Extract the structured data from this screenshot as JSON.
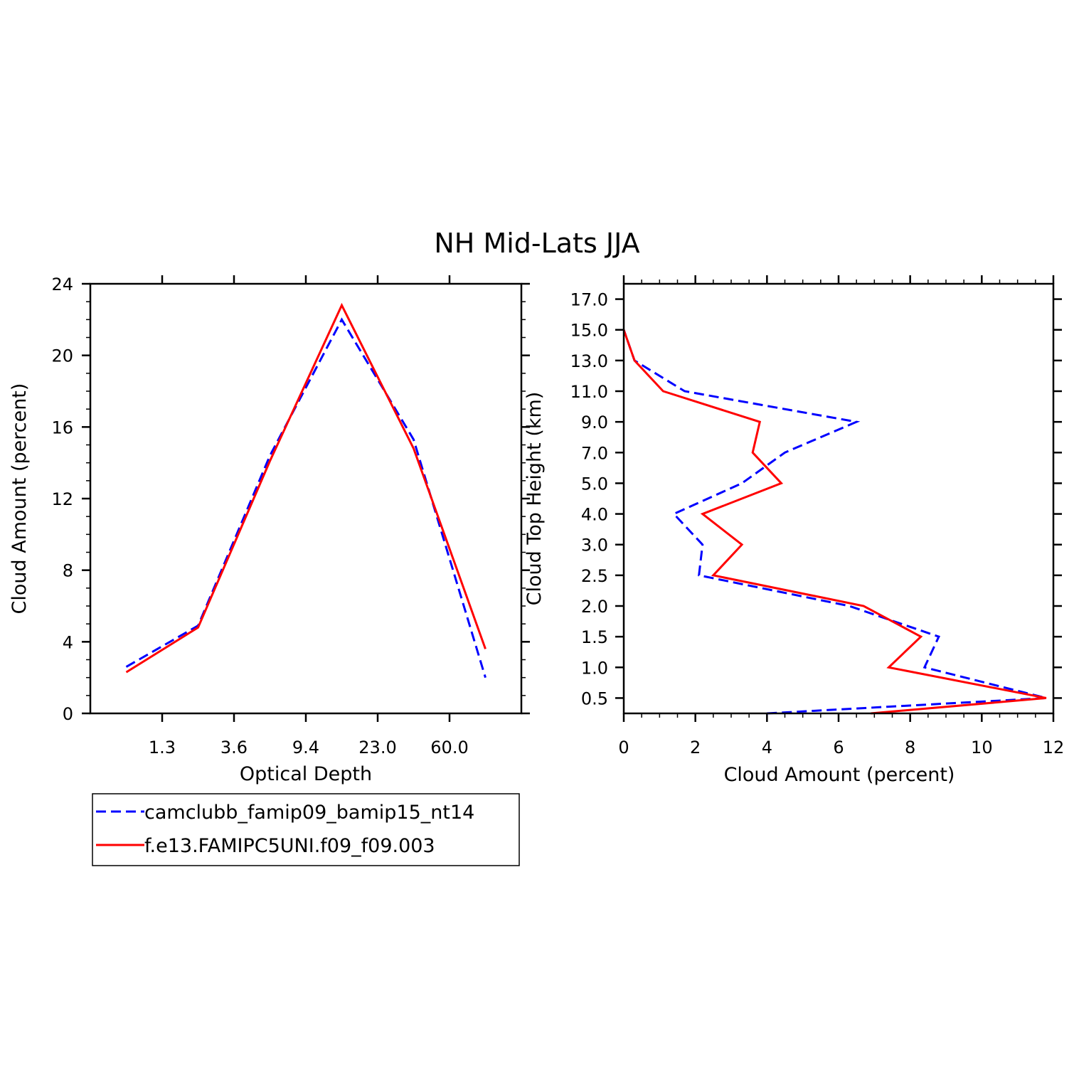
{
  "title": "NH Mid-Lats JJA",
  "series_styles": [
    {
      "name": "camclubb_famip09_bamip15_nt14",
      "color": "#0000ff",
      "dash": "dashed"
    },
    {
      "name": "f.e13.FAMIPC5UNI.f09_f09.003",
      "color": "#ff0000",
      "dash": "solid"
    }
  ],
  "chart_data": [
    {
      "type": "line",
      "xlabel": "Optical Depth",
      "ylabel": "Cloud Amount (percent)",
      "x_tick_labels": [
        "1.3",
        "3.6",
        "9.4",
        "23.0",
        "60.0"
      ],
      "x_index": [
        0,
        1,
        2,
        3,
        4,
        5,
        6
      ],
      "xlim": [
        0,
        6
      ],
      "ylim": [
        0,
        24
      ],
      "y_ticks": [
        0,
        4,
        8,
        12,
        16,
        20,
        24
      ],
      "series": [
        {
          "name": "camclubb_famip09_bamip15_nt14",
          "values": [
            2.6,
            4.9,
            14.4,
            22.0,
            15.3,
            2.0
          ]
        },
        {
          "name": "f.e13.FAMIPC5UNI.f09_f09.003",
          "values": [
            2.3,
            4.8,
            14.1,
            22.8,
            14.8,
            3.6
          ]
        }
      ]
    },
    {
      "type": "line",
      "xlabel": "Cloud Amount (percent)",
      "ylabel": "Cloud Top Height (km)",
      "xlim": [
        0,
        12
      ],
      "x_ticks": [
        0,
        2,
        4,
        6,
        8,
        10,
        12
      ],
      "y_tick_labels": [
        "0.5",
        "1.0",
        "1.5",
        "2.0",
        "2.5",
        "3.0",
        "4.0",
        "5.0",
        "7.0",
        "9.0",
        "11.0",
        "13.0",
        "15.0",
        "17.0"
      ],
      "y_index_range": [
        0,
        14
      ],
      "height_index": [
        0,
        1,
        2,
        3,
        4,
        5,
        6,
        7,
        8,
        9,
        10,
        11,
        12,
        13,
        14
      ],
      "series": [
        {
          "name": "camclubb_famip09_bamip15_nt14",
          "values": [
            4.0,
            11.8,
            8.4,
            8.8,
            6.3,
            2.1,
            2.2,
            1.4,
            3.3,
            4.5,
            6.5,
            1.7,
            0.3,
            0.0
          ]
        },
        {
          "name": "f.e13.FAMIPC5UNI.f09_f09.003",
          "values": [
            6.9,
            11.8,
            7.4,
            8.3,
            6.7,
            2.5,
            3.3,
            2.2,
            4.4,
            3.6,
            3.8,
            1.1,
            0.3,
            0.0
          ]
        }
      ]
    }
  ]
}
